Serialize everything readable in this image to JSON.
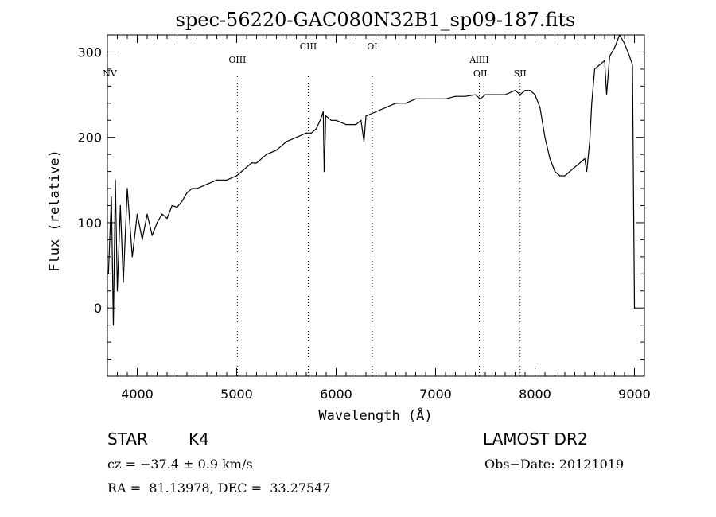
{
  "chart_data": {
    "type": "line",
    "title": "spec-56220-GAC080N32B1_sp09-187.fits",
    "xlabel": "Wavelength (Å)",
    "ylabel": "Flux (relative)",
    "xlim": [
      3700,
      9100
    ],
    "ylim": [
      -80,
      320
    ],
    "xticks": [
      4000,
      5000,
      6000,
      7000,
      8000,
      9000
    ],
    "yticks": [
      0,
      100,
      200,
      300
    ],
    "grid": false,
    "series": [
      {
        "x": [
          3710,
          3740,
          3760,
          3780,
          3800,
          3830,
          3860,
          3900,
          3950,
          4000,
          4050,
          4100,
          4150,
          4200,
          4250,
          4300,
          4350,
          4400,
          4450,
          4500,
          4550,
          4600,
          4700,
          4800,
          4900,
          5000,
          5100,
          5150,
          5200,
          5300,
          5400,
          5500,
          5600,
          5700,
          5750,
          5800,
          5840,
          5870,
          5880,
          5890,
          5895,
          5900,
          5950,
          6000,
          6100,
          6200,
          6250,
          6280,
          6300,
          6400,
          6500,
          6600,
          6700,
          6800,
          6900,
          7000,
          7100,
          7200,
          7300,
          7400,
          7450,
          7500,
          7600,
          7700,
          7800,
          7850,
          7900,
          7950,
          8000,
          8050,
          8100,
          8150,
          8200,
          8250,
          8300,
          8350,
          8400,
          8450,
          8500,
          8520,
          8550,
          8570,
          8600,
          8650,
          8700,
          8720,
          8750,
          8800,
          8850,
          8900,
          8950,
          8980,
          9000,
          9010
        ],
        "y": [
          40,
          130,
          -20,
          150,
          20,
          120,
          30,
          140,
          60,
          110,
          80,
          110,
          85,
          100,
          110,
          105,
          120,
          118,
          125,
          135,
          140,
          140,
          145,
          150,
          150,
          155,
          165,
          170,
          170,
          180,
          185,
          195,
          200,
          205,
          205,
          210,
          220,
          230,
          160,
          200,
          225,
          225,
          220,
          220,
          215,
          215,
          220,
          195,
          225,
          230,
          235,
          240,
          240,
          245,
          245,
          245,
          245,
          248,
          248,
          250,
          245,
          250,
          250,
          250,
          255,
          250,
          255,
          255,
          250,
          235,
          200,
          175,
          160,
          155,
          155,
          160,
          165,
          170,
          175,
          160,
          195,
          240,
          280,
          285,
          290,
          250,
          295,
          305,
          320,
          310,
          295,
          285,
          0,
          0
        ]
      }
    ],
    "annotations": [
      {
        "label": "NV",
        "x": 3700,
        "line": false
      },
      {
        "label": "OIII",
        "x": 5007,
        "line": true
      },
      {
        "label": "CIII",
        "x": 5720,
        "line": true
      },
      {
        "label": "OI",
        "x": 6363,
        "line": true
      },
      {
        "label": "AlIII",
        "x": 7440,
        "line": true,
        "row": "upper"
      },
      {
        "label": "OII",
        "x": 7450,
        "line": false,
        "row": "lower"
      },
      {
        "label": "SII",
        "x": 7850,
        "line": true
      }
    ]
  },
  "info": {
    "object_class": "STAR",
    "subclass": "K4",
    "survey": "LAMOST DR2",
    "cz": "cz = −37.4 ± 0.9 km/s",
    "obs_date": "Obs−Date: 20121019",
    "coords": "RA =  81.13978, DEC =  33.27547"
  }
}
